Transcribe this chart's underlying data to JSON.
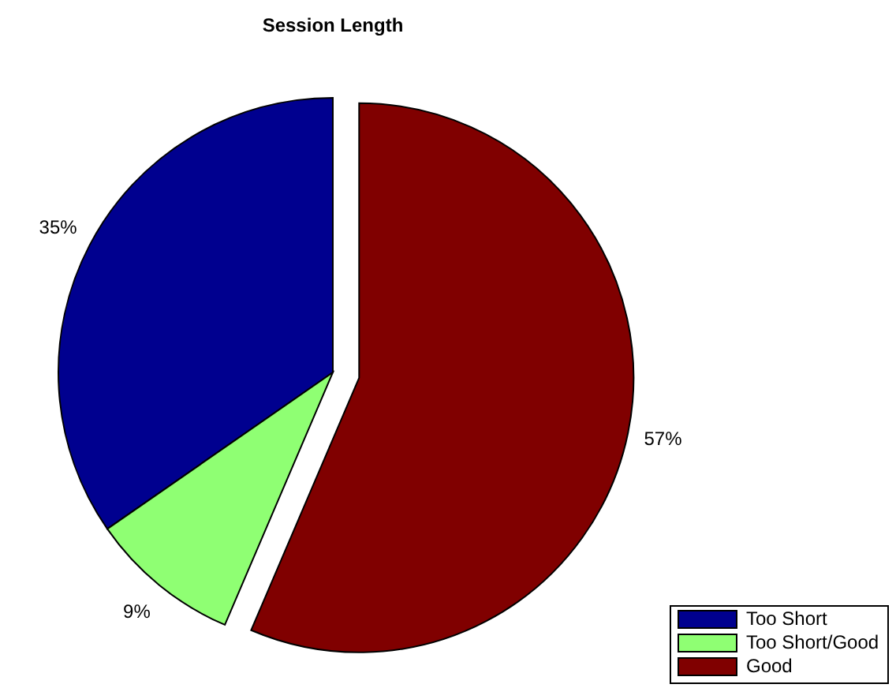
{
  "chart_data": {
    "type": "pie",
    "title": "Session Length",
    "categories": [
      "Too Short",
      "Too Short/Good",
      "Good"
    ],
    "values": [
      35,
      9,
      57
    ],
    "value_labels": [
      "35%",
      "9%",
      "57%"
    ],
    "colors": [
      "#00008f",
      "#8fff73",
      "#800000"
    ],
    "legend": "bottom right"
  }
}
